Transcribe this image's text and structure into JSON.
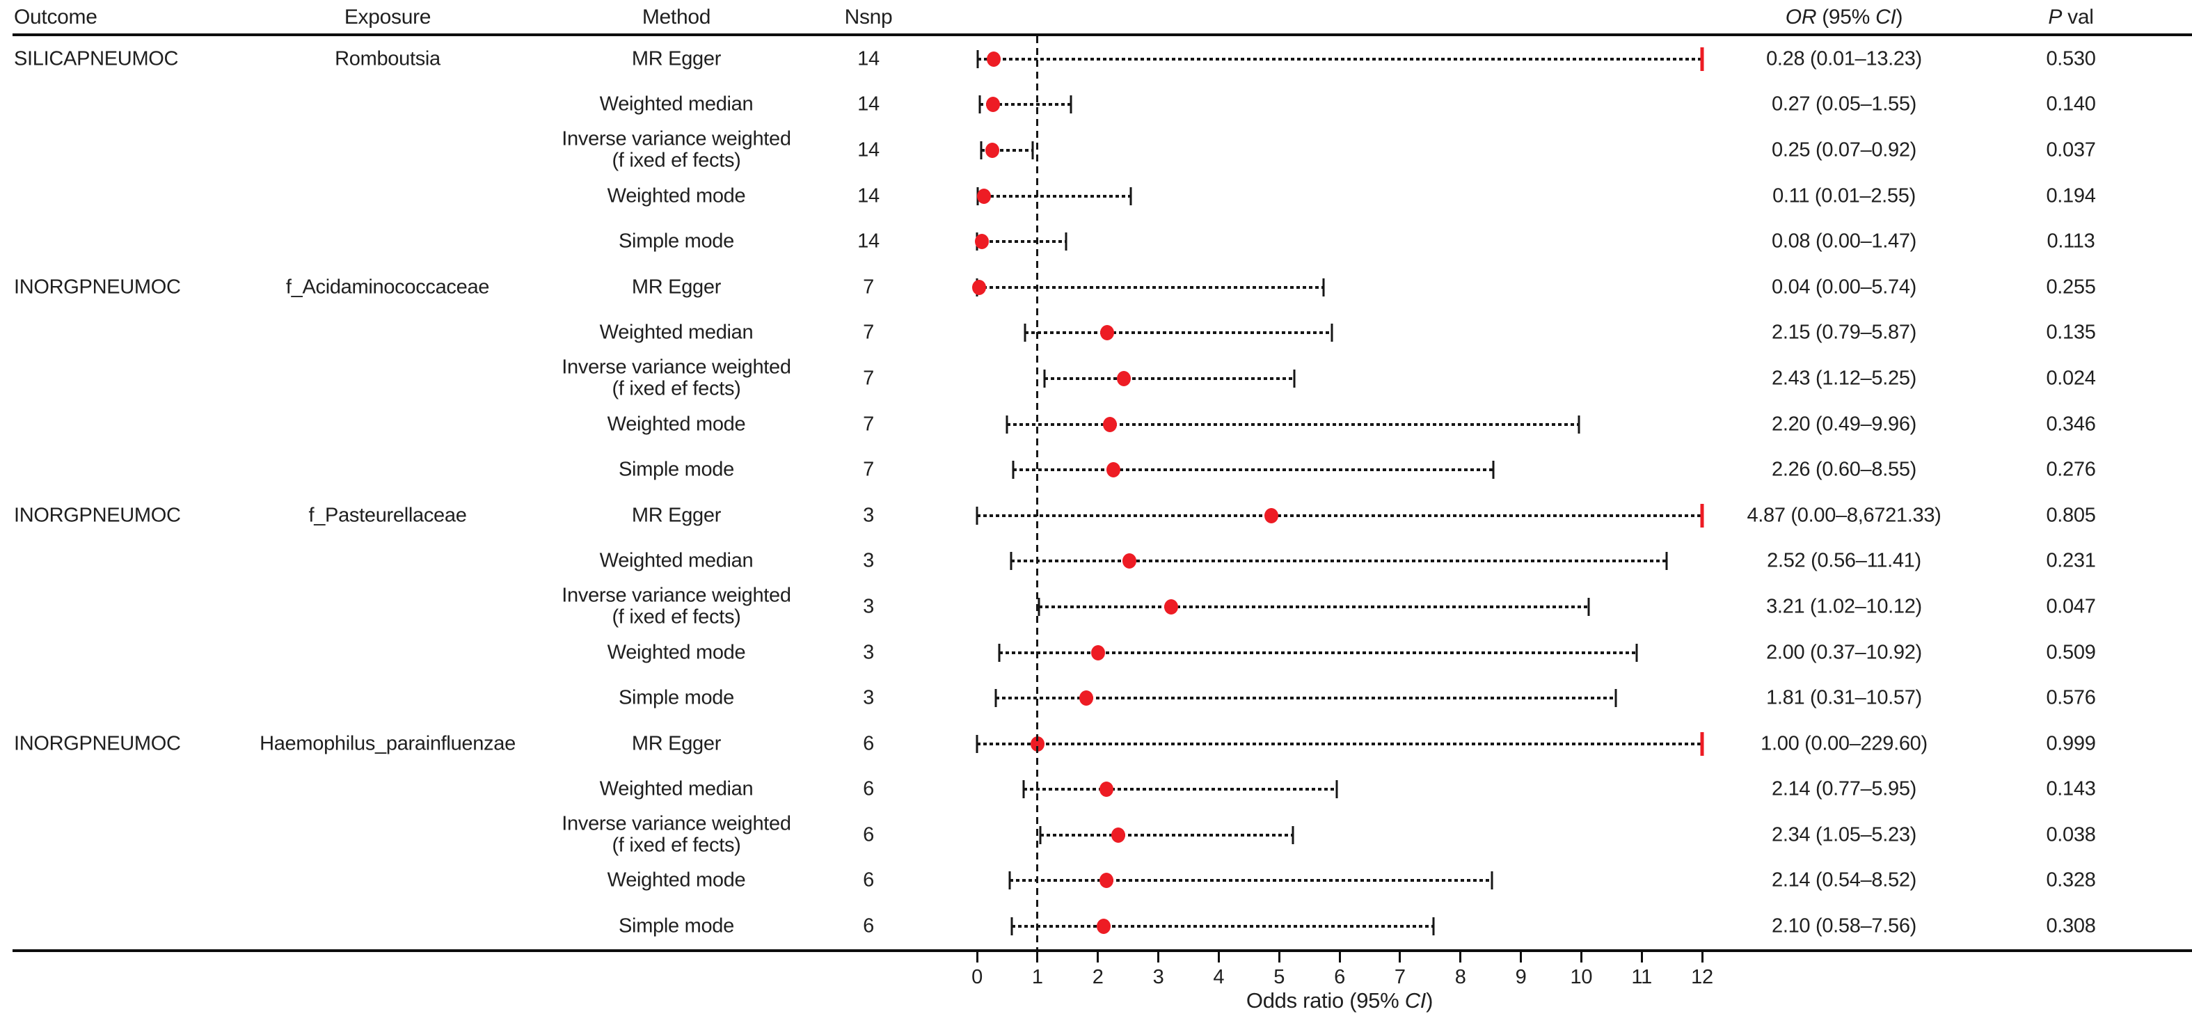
{
  "colors": {
    "accent_red": "#ED1C24",
    "text": "#1f1f1f",
    "line": "#0d0d0d"
  },
  "header": {
    "outcome": "Outcome",
    "exposure": "Exposure",
    "method": "Method",
    "nsnp": "Nsnp",
    "or_italic": "OR",
    "or_mid": " (95% ",
    "ci_italic": "CI",
    "or_close": ")",
    "p_italic": "P",
    "p_rest": " val"
  },
  "axis": {
    "label_pre": "Odds ratio (95% ",
    "label_italic": "CI",
    "label_post": ")",
    "ticks": [
      0,
      1,
      2,
      3,
      4,
      5,
      6,
      7,
      8,
      9,
      10,
      11,
      12
    ]
  },
  "chart_data": {
    "type": "forest",
    "xlabel": "Odds ratio (95% CI)",
    "xlim": [
      0,
      12
    ],
    "reference_line": 1,
    "ticks": [
      0,
      1,
      2,
      3,
      4,
      5,
      6,
      7,
      8,
      9,
      10,
      11,
      12
    ],
    "marker_color": "#ED1C24",
    "rows": [
      {
        "outcome": "SILICAPNEUMOC",
        "exposure": "Romboutsia",
        "method": "MR Egger",
        "method2": "",
        "nsnp": "14",
        "or": "0.28 (0.01–13.23)",
        "p": "0.530",
        "est": 0.28,
        "lo": 0.01,
        "hi": 13.23
      },
      {
        "outcome": "",
        "exposure": "",
        "method": "Weighted median",
        "method2": "",
        "nsnp": "14",
        "or": "0.27 (0.05–1.55)",
        "p": "0.140",
        "est": 0.27,
        "lo": 0.05,
        "hi": 1.55
      },
      {
        "outcome": "",
        "exposure": "",
        "method": "Inverse variance weighted",
        "method2": "(f ixed ef fects)",
        "nsnp": "14",
        "or": "0.25 (0.07–0.92)",
        "p": "0.037",
        "est": 0.25,
        "lo": 0.07,
        "hi": 0.92
      },
      {
        "outcome": "",
        "exposure": "",
        "method": "Weighted mode",
        "method2": "",
        "nsnp": "14",
        "or": "0.11 (0.01–2.55)",
        "p": "0.194",
        "est": 0.11,
        "lo": 0.01,
        "hi": 2.55
      },
      {
        "outcome": "",
        "exposure": "",
        "method": "Simple mode",
        "method2": "",
        "nsnp": "14",
        "or": "0.08 (0.00–1.47)",
        "p": "0.113",
        "est": 0.08,
        "lo": 0.0,
        "hi": 1.47
      },
      {
        "outcome": "INORGPNEUMOC",
        "exposure": "f_Acidaminococcaceae",
        "method": "MR Egger",
        "method2": "",
        "nsnp": "7",
        "or": "0.04 (0.00–5.74)",
        "p": "0.255",
        "est": 0.04,
        "lo": 0.0,
        "hi": 5.74
      },
      {
        "outcome": "",
        "exposure": "",
        "method": "Weighted median",
        "method2": "",
        "nsnp": "7",
        "or": "2.15 (0.79–5.87)",
        "p": "0.135",
        "est": 2.15,
        "lo": 0.79,
        "hi": 5.87
      },
      {
        "outcome": "",
        "exposure": "",
        "method": "Inverse variance weighted",
        "method2": "(f ixed ef fects)",
        "nsnp": "7",
        "or": "2.43 (1.12–5.25)",
        "p": "0.024",
        "est": 2.43,
        "lo": 1.12,
        "hi": 5.25
      },
      {
        "outcome": "",
        "exposure": "",
        "method": "Weighted mode",
        "method2": "",
        "nsnp": "7",
        "or": "2.20 (0.49–9.96)",
        "p": "0.346",
        "est": 2.2,
        "lo": 0.49,
        "hi": 9.96
      },
      {
        "outcome": "",
        "exposure": "",
        "method": "Simple mode",
        "method2": "",
        "nsnp": "7",
        "or": "2.26 (0.60–8.55)",
        "p": "0.276",
        "est": 2.26,
        "lo": 0.6,
        "hi": 8.55
      },
      {
        "outcome": "INORGPNEUMOC",
        "exposure": "f_Pasteurellaceae",
        "method": "MR Egger",
        "method2": "",
        "nsnp": "3",
        "or": "4.87 (0.00–8,6721.33)",
        "p": "0.805",
        "est": 4.87,
        "lo": 0.0,
        "hi": 86721.33
      },
      {
        "outcome": "",
        "exposure": "",
        "method": "Weighted median",
        "method2": "",
        "nsnp": "3",
        "or": "2.52 (0.56–11.41)",
        "p": "0.231",
        "est": 2.52,
        "lo": 0.56,
        "hi": 11.41
      },
      {
        "outcome": "",
        "exposure": "",
        "method": "Inverse variance weighted",
        "method2": "(f ixed ef fects)",
        "nsnp": "3",
        "or": "3.21 (1.02–10.12)",
        "p": "0.047",
        "est": 3.21,
        "lo": 1.02,
        "hi": 10.12
      },
      {
        "outcome": "",
        "exposure": "",
        "method": "Weighted mode",
        "method2": "",
        "nsnp": "3",
        "or": "2.00 (0.37–10.92)",
        "p": "0.509",
        "est": 2.0,
        "lo": 0.37,
        "hi": 10.92
      },
      {
        "outcome": "",
        "exposure": "",
        "method": "Simple mode",
        "method2": "",
        "nsnp": "3",
        "or": "1.81 (0.31–10.57)",
        "p": "0.576",
        "est": 1.81,
        "lo": 0.31,
        "hi": 10.57
      },
      {
        "outcome": "INORGPNEUMOC",
        "exposure": "Haemophilus_parainfluenzae",
        "method": "MR Egger",
        "method2": "",
        "nsnp": "6",
        "or": "1.00 (0.00–229.60)",
        "p": "0.999",
        "est": 1.0,
        "lo": 0.0,
        "hi": 229.6
      },
      {
        "outcome": "",
        "exposure": "",
        "method": "Weighted median",
        "method2": "",
        "nsnp": "6",
        "or": "2.14 (0.77–5.95)",
        "p": "0.143",
        "est": 2.14,
        "lo": 0.77,
        "hi": 5.95
      },
      {
        "outcome": "",
        "exposure": "",
        "method": "Inverse variance weighted",
        "method2": "(f ixed ef fects)",
        "nsnp": "6",
        "or": "2.34 (1.05–5.23)",
        "p": "0.038",
        "est": 2.34,
        "lo": 1.05,
        "hi": 5.23
      },
      {
        "outcome": "",
        "exposure": "",
        "method": "Weighted mode",
        "method2": "",
        "nsnp": "6",
        "or": "2.14 (0.54–8.52)",
        "p": "0.328",
        "est": 2.14,
        "lo": 0.54,
        "hi": 8.52
      },
      {
        "outcome": "",
        "exposure": "",
        "method": "Simple mode",
        "method2": "",
        "nsnp": "6",
        "or": "2.10 (0.58–7.56)",
        "p": "0.308",
        "est": 2.1,
        "lo": 0.58,
        "hi": 7.56
      }
    ]
  }
}
